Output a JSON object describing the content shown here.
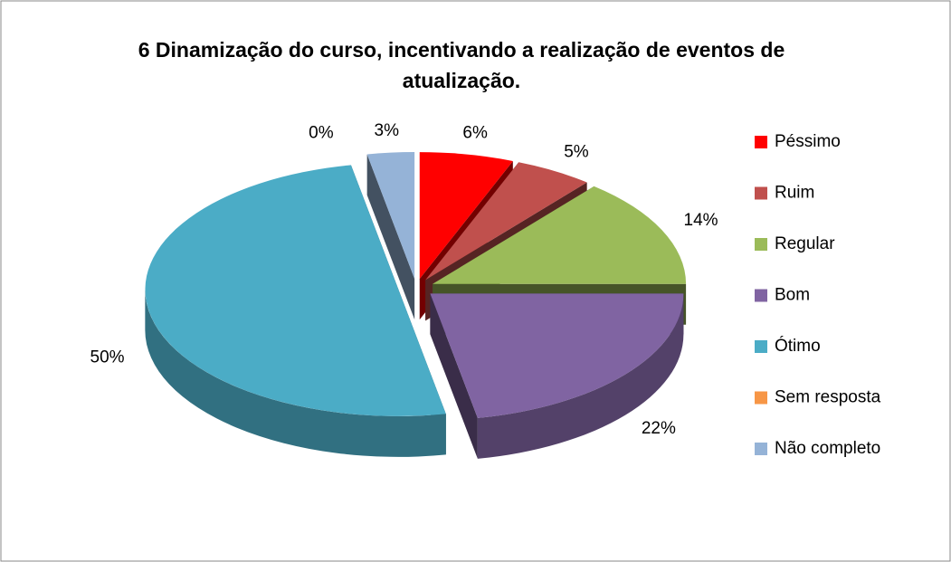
{
  "chart_data": {
    "type": "pie",
    "title": "6 Dinamização do curso, incentivando a realização de eventos de atualização.",
    "categories": [
      "Péssimo",
      "Ruim",
      "Regular",
      "Bom",
      "Ótimo",
      "Sem resposta",
      "Não completo"
    ],
    "values": [
      6,
      5,
      14,
      22,
      50,
      0,
      3
    ],
    "value_labels": [
      "6%",
      "5%",
      "14%",
      "22%",
      "50%",
      "0%",
      "3%"
    ],
    "colors": [
      "#ff0000",
      "#c0504d",
      "#9bbb59",
      "#8064a2",
      "#4bacc6",
      "#f79646",
      "#95b3d7"
    ],
    "legend": "right"
  }
}
